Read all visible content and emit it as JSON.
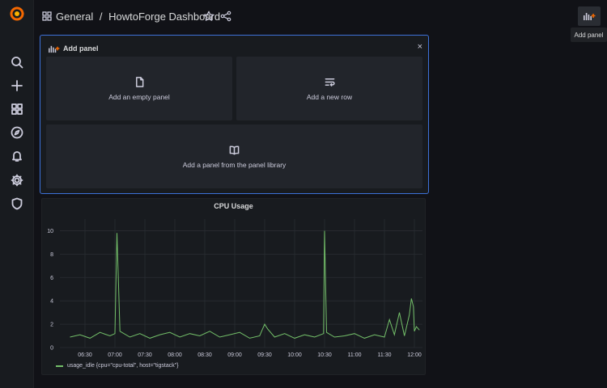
{
  "topbar": {
    "breadcrumb_folder": "General",
    "breadcrumb_separator": "/",
    "breadcrumb_dashboard": "HowtoForge Dashboard",
    "add_panel_tooltip": "Add panel"
  },
  "sidebar": {
    "items": [
      {
        "name": "search-icon"
      },
      {
        "name": "plus-icon"
      },
      {
        "name": "dashboards-icon"
      },
      {
        "name": "explore-icon"
      },
      {
        "name": "alerting-bell-icon"
      },
      {
        "name": "gear-icon"
      },
      {
        "name": "shield-icon"
      }
    ]
  },
  "add_panel": {
    "title": "Add panel",
    "close_glyph": "×",
    "options": {
      "empty": "Add an empty panel",
      "row": "Add a new row",
      "library": "Add a panel from the panel library"
    }
  },
  "colors": {
    "accent": "#3d71d9",
    "series": "#73bf69",
    "logo": "#f46800"
  },
  "chart_data": {
    "type": "line",
    "title": "CPU Usage",
    "ylim": [
      0,
      11
    ],
    "yticks": [
      0,
      2,
      4,
      6,
      8,
      10
    ],
    "xticks": [
      "06:30",
      "07:00",
      "07:30",
      "08:00",
      "08:30",
      "09:00",
      "09:30",
      "10:00",
      "10:30",
      "11:00",
      "11:30",
      "12:00"
    ],
    "grid": true,
    "legend_placement": "bottom-left",
    "series": [
      {
        "name": "usage_idle {cpu=\"cpu-total\", host=\"tigstack\"}",
        "x": [
          "06:15",
          "06:25",
          "06:35",
          "06:45",
          "06:55",
          "07:00",
          "07:02",
          "07:05",
          "07:15",
          "07:25",
          "07:35",
          "07:45",
          "07:55",
          "08:05",
          "08:15",
          "08:25",
          "08:35",
          "08:45",
          "08:55",
          "09:05",
          "09:15",
          "09:25",
          "09:30",
          "09:33",
          "09:40",
          "09:50",
          "10:00",
          "10:10",
          "10:20",
          "10:29",
          "10:30",
          "10:32",
          "10:40",
          "10:50",
          "11:00",
          "11:10",
          "11:20",
          "11:30",
          "11:35",
          "11:40",
          "11:45",
          "11:50",
          "11:55",
          "11:57",
          "11:59",
          "12:00",
          "12:02",
          "12:05"
        ],
        "y": [
          0.9,
          1.1,
          0.8,
          1.3,
          1.0,
          1.2,
          9.8,
          1.4,
          0.9,
          1.2,
          0.8,
          1.1,
          1.3,
          0.9,
          1.2,
          1.0,
          1.4,
          0.9,
          1.1,
          1.3,
          0.8,
          1.0,
          2.0,
          1.6,
          0.9,
          1.2,
          0.8,
          1.1,
          0.9,
          1.2,
          10.0,
          1.3,
          0.9,
          1.0,
          1.2,
          0.8,
          1.1,
          0.9,
          2.4,
          1.1,
          3.0,
          1.0,
          2.8,
          4.2,
          3.5,
          1.4,
          1.8,
          1.5
        ]
      }
    ]
  }
}
